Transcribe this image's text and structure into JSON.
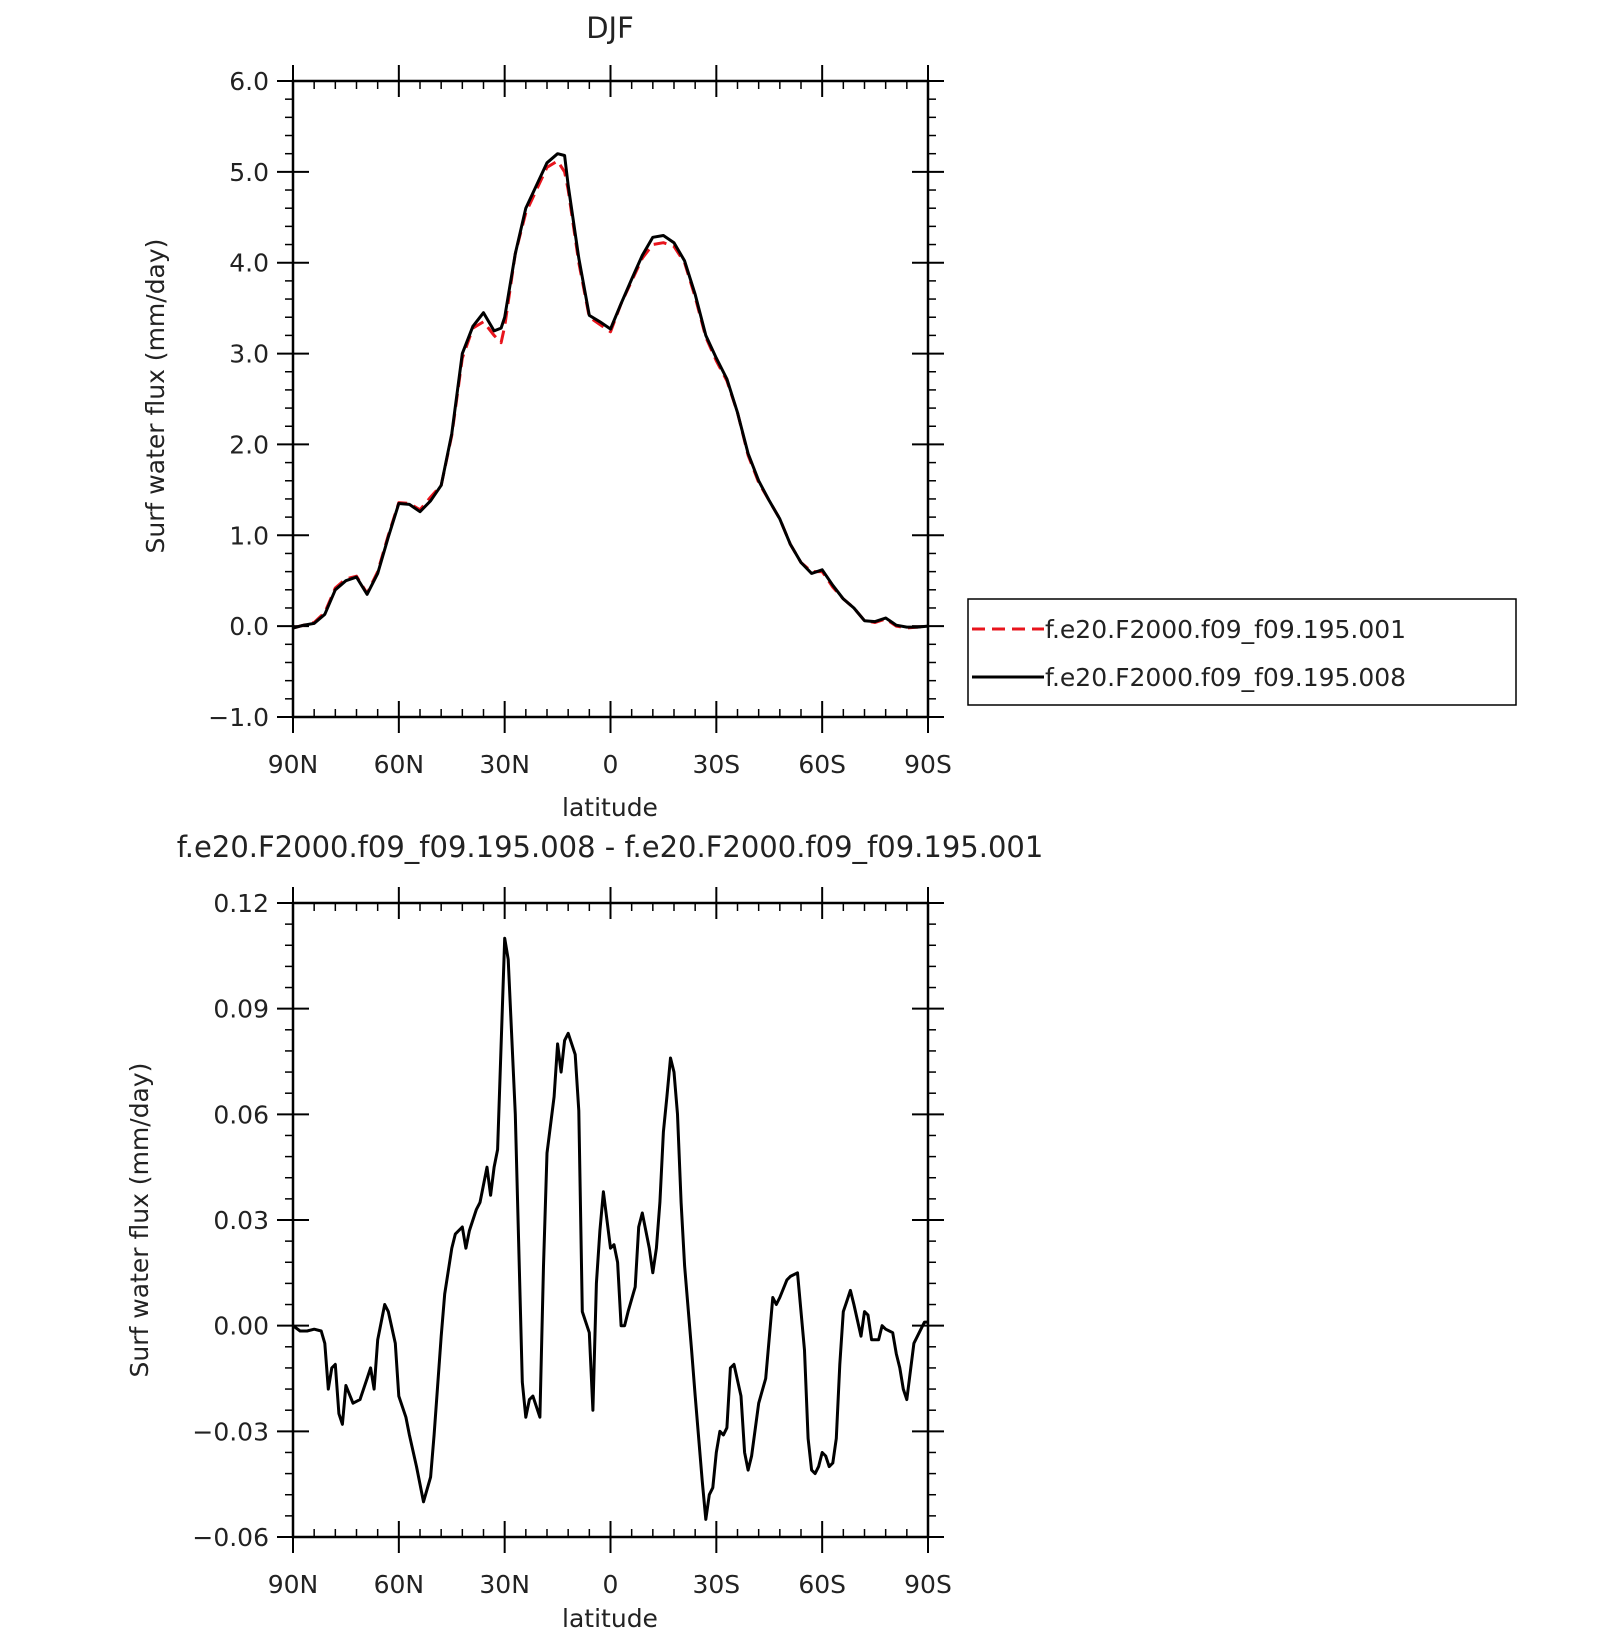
{
  "colors": {
    "series_001": "#e8141c",
    "series_008": "#000000",
    "axis": "#000000"
  },
  "chart_data": [
    {
      "type": "line",
      "title": "DJF",
      "xlabel": "latitude",
      "ylabel": "Surf water flux (mm/day)",
      "xlim": [
        90,
        -90
      ],
      "ylim": [
        -1.0,
        6.0
      ],
      "xticks": [
        90,
        60,
        30,
        0,
        -30,
        -60,
        -90
      ],
      "xtick_labels": [
        "90N",
        "60N",
        "30N",
        "0",
        "30S",
        "60S",
        "90S"
      ],
      "yticks": [
        -1.0,
        0.0,
        1.0,
        2.0,
        3.0,
        4.0,
        5.0,
        6.0
      ],
      "ytick_labels": [
        "-1.0",
        "0.0",
        "1.0",
        "2.0",
        "3.0",
        "4.0",
        "5.0",
        "6.0"
      ],
      "grid": false,
      "legend": "right-outside",
      "series": [
        {
          "name": "f.e20.F2000.f09_f09.195.001",
          "style": "dashed",
          "x": [
            90,
            87,
            84,
            81,
            78,
            75,
            72,
            69,
            66,
            63,
            60,
            57,
            54,
            51,
            48,
            45,
            42,
            39,
            36,
            33,
            31,
            30,
            27,
            24,
            21,
            18,
            15,
            13,
            12,
            9,
            6,
            3,
            0,
            -3,
            -6,
            -9,
            -12,
            -15,
            -18,
            -21,
            -24,
            -27,
            -30,
            -33,
            -36,
            -39,
            -42,
            -45,
            -48,
            -51,
            -54,
            -57,
            -60,
            -63,
            -66,
            -69,
            -72,
            -75,
            -78,
            -81,
            -84,
            -87,
            -90
          ],
          "y": [
            -0.02,
            0.01,
            0.04,
            0.15,
            0.42,
            0.52,
            0.55,
            0.36,
            0.6,
            1.0,
            1.36,
            1.35,
            1.28,
            1.42,
            1.55,
            2.1,
            2.95,
            3.28,
            3.35,
            3.2,
            3.12,
            3.3,
            4.1,
            4.55,
            4.8,
            5.05,
            5.12,
            5.0,
            4.8,
            4.0,
            3.4,
            3.32,
            3.24,
            3.55,
            3.8,
            4.05,
            4.2,
            4.22,
            4.18,
            4.0,
            3.62,
            3.18,
            2.92,
            2.7,
            2.35,
            1.88,
            1.58,
            1.38,
            1.18,
            0.9,
            0.7,
            0.6,
            0.6,
            0.43,
            0.3,
            0.2,
            0.06,
            0.04,
            0.08,
            0.0,
            -0.02,
            -0.01,
            0.0
          ]
        },
        {
          "name": "f.e20.F2000.f09_f09.195.008",
          "style": "solid",
          "x": [
            90,
            87,
            84,
            81,
            78,
            75,
            72,
            69,
            66,
            63,
            60,
            57,
            54,
            51,
            48,
            45,
            42,
            39,
            36,
            33,
            31,
            30,
            27,
            24,
            21,
            18,
            15,
            13,
            12,
            9,
            6,
            3,
            0,
            -3,
            -6,
            -9,
            -12,
            -15,
            -18,
            -21,
            -24,
            -27,
            -30,
            -33,
            -36,
            -39,
            -42,
            -45,
            -48,
            -51,
            -54,
            -57,
            -60,
            -63,
            -66,
            -69,
            -72,
            -75,
            -78,
            -81,
            -84,
            -87,
            -90
          ],
          "y": [
            -0.02,
            0.01,
            0.03,
            0.13,
            0.4,
            0.5,
            0.54,
            0.35,
            0.58,
            0.98,
            1.35,
            1.34,
            1.26,
            1.38,
            1.55,
            2.12,
            3.0,
            3.3,
            3.45,
            3.25,
            3.28,
            3.4,
            4.1,
            4.6,
            4.85,
            5.1,
            5.2,
            5.18,
            4.85,
            4.05,
            3.42,
            3.35,
            3.27,
            3.55,
            3.82,
            4.08,
            4.28,
            4.3,
            4.22,
            4.02,
            3.65,
            3.2,
            2.95,
            2.72,
            2.35,
            1.9,
            1.6,
            1.38,
            1.18,
            0.9,
            0.7,
            0.58,
            0.62,
            0.45,
            0.3,
            0.2,
            0.06,
            0.05,
            0.09,
            0.01,
            -0.01,
            -0.01,
            0.0
          ]
        }
      ]
    },
    {
      "type": "line",
      "title": "f.e20.F2000.f09_f09.195.008 - f.e20.F2000.f09_f09.195.001",
      "xlabel": "latitude",
      "ylabel": "Surf water flux (mm/day)",
      "xlim": [
        90,
        -90
      ],
      "ylim": [
        -0.06,
        0.12
      ],
      "xticks": [
        90,
        60,
        30,
        0,
        -30,
        -60,
        -90
      ],
      "xtick_labels": [
        "90N",
        "60N",
        "30N",
        "0",
        "30S",
        "60S",
        "90S"
      ],
      "yticks": [
        -0.06,
        -0.03,
        0.0,
        0.03,
        0.06,
        0.09,
        0.12
      ],
      "ytick_labels": [
        "-0.06",
        "-0.03",
        "0.00",
        "0.03",
        "0.06",
        "0.09",
        "0.12"
      ],
      "grid": false,
      "series": [
        {
          "name": "",
          "style": "solid",
          "x": [
            90,
            88,
            86,
            84,
            82,
            81,
            80,
            79,
            78,
            77,
            76,
            75,
            73,
            71,
            69,
            68,
            67,
            66,
            64,
            63,
            61,
            60,
            58,
            57,
            55,
            53,
            51,
            50,
            48,
            47,
            45,
            44,
            42,
            41,
            40,
            38,
            37,
            35,
            34,
            33,
            32,
            30,
            29,
            27,
            25,
            24,
            23,
            22,
            20,
            19,
            18,
            16,
            15,
            14,
            13,
            12,
            10,
            9,
            8,
            6,
            5,
            4,
            3,
            2,
            0,
            -1,
            -2,
            -3,
            -4,
            -5,
            -7,
            -8,
            -9,
            -11,
            -12,
            -13,
            -14,
            -15,
            -16,
            -17,
            -18,
            -19,
            -20,
            -21,
            -23,
            -24,
            -26,
            -27,
            -28,
            -29,
            -30,
            -31,
            -32,
            -33,
            -34,
            -35,
            -37,
            -38,
            -39,
            -40,
            -42,
            -44,
            -46,
            -47,
            -48,
            -50,
            -51,
            -53,
            -55,
            -56,
            -57,
            -58,
            -59,
            -60,
            -61,
            -62,
            -63,
            -64,
            -65,
            -66,
            -67,
            -68,
            -69,
            -71,
            -72,
            -73,
            -74,
            -76,
            -77,
            -78,
            -80,
            -81,
            -82,
            -83,
            -84,
            -86,
            -88,
            -89,
            -90
          ],
          "y": [
            0.0,
            -0.0015,
            -0.0015,
            -0.001,
            -0.0015,
            -0.005,
            -0.018,
            -0.012,
            -0.011,
            -0.025,
            -0.028,
            -0.017,
            -0.022,
            -0.021,
            -0.015,
            -0.012,
            -0.018,
            -0.004,
            0.006,
            0.004,
            -0.005,
            -0.02,
            -0.026,
            -0.031,
            -0.04,
            -0.05,
            -0.043,
            -0.031,
            -0.003,
            0.009,
            0.022,
            0.026,
            0.028,
            0.022,
            0.027,
            0.033,
            0.035,
            0.045,
            0.037,
            0.045,
            0.05,
            0.11,
            0.104,
            0.06,
            -0.016,
            -0.026,
            -0.021,
            -0.02,
            -0.026,
            0.017,
            0.049,
            0.065,
            0.08,
            0.072,
            0.081,
            0.083,
            0.077,
            0.061,
            0.004,
            -0.002,
            -0.024,
            0.012,
            0.027,
            0.038,
            0.022,
            0.023,
            0.018,
            0.0,
            0.0,
            0.004,
            0.011,
            0.028,
            0.032,
            0.022,
            0.015,
            0.022,
            0.035,
            0.055,
            0.065,
            0.076,
            0.072,
            0.06,
            0.035,
            0.017,
            -0.007,
            -0.02,
            -0.044,
            -0.055,
            -0.048,
            -0.046,
            -0.036,
            -0.03,
            -0.031,
            -0.029,
            -0.012,
            -0.011,
            -0.02,
            -0.036,
            -0.041,
            -0.037,
            -0.022,
            -0.015,
            0.008,
            0.006,
            0.008,
            0.013,
            0.014,
            0.015,
            -0.007,
            -0.032,
            -0.041,
            -0.042,
            -0.04,
            -0.036,
            -0.037,
            -0.04,
            -0.039,
            -0.032,
            -0.011,
            0.004,
            0.007,
            0.01,
            0.006,
            -0.003,
            0.004,
            0.003,
            -0.004,
            -0.004,
            0.0,
            -0.001,
            -0.002,
            -0.008,
            -0.012,
            -0.018,
            -0.021,
            -0.005,
            -0.001,
            0.001,
            0.001
          ]
        }
      ]
    }
  ]
}
